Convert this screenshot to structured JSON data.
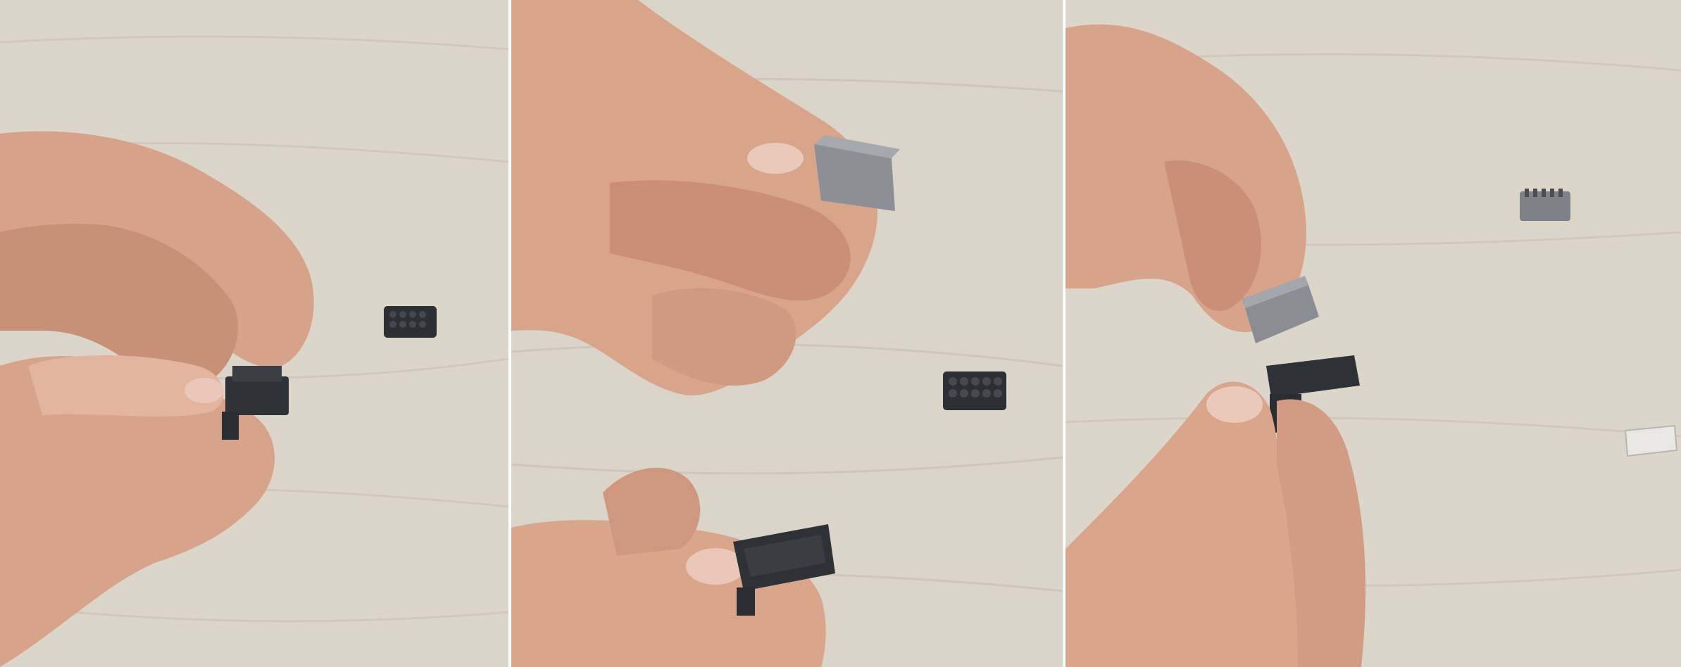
{
  "panels": [
    {
      "id": "panel-1"
    },
    {
      "id": "panel-2"
    },
    {
      "id": "panel-3"
    }
  ],
  "colors": {
    "table": "#dbd4c9",
    "table_grain": "#c9c0b3",
    "skin": "#d9a68c",
    "skin_shadow": "#b9826b",
    "skin_highlight": "#e8bfa8",
    "nail": "#e9c8bb",
    "plastic_dark": "#2e3136",
    "plastic_mid": "#44484f",
    "metal": "#8a8d93",
    "paper": "#e8e6e2"
  }
}
